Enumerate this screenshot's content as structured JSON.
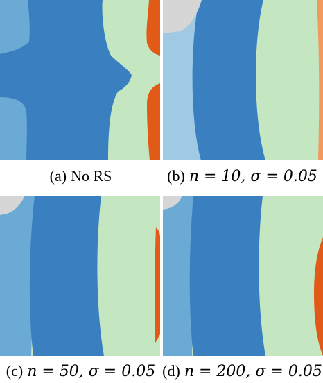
{
  "panels": [
    {
      "id": "a",
      "tag": "(a)",
      "label": "No RS",
      "math": ""
    },
    {
      "id": "b",
      "tag": "(b)",
      "label": "",
      "math": "n = 10, σ = 0.05"
    },
    {
      "id": "c",
      "tag": "(c)",
      "label": "",
      "math": "n = 50, σ = 0.05"
    },
    {
      "id": "d",
      "tag": "(d)",
      "label": "",
      "math": "n = 200, σ = 0.05"
    }
  ],
  "colors": {
    "dark_blue": "#3a7fc0",
    "mid_blue": "#6aaad5",
    "light_blue": "#a0cae3",
    "light_green": "#c4e6c0",
    "orange": "#e25a17",
    "light_orange": "#f29a5c",
    "gray": "#d6d6d6"
  }
}
